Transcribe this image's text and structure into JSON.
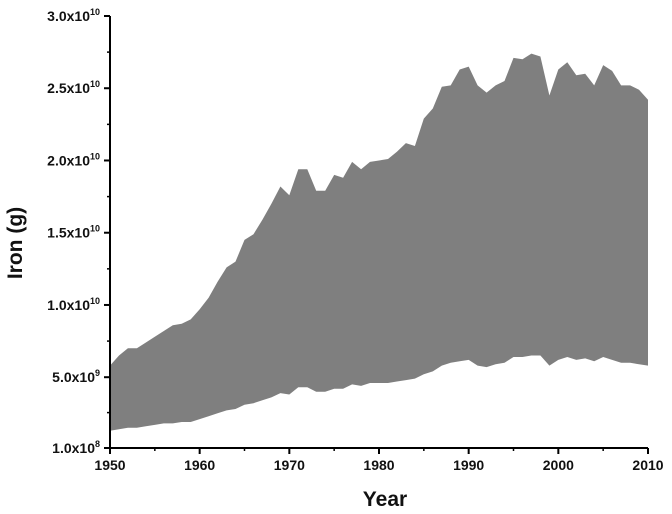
{
  "chart_data": {
    "type": "area",
    "xlabel": "Year",
    "ylabel": "Iron (g)",
    "xlim": [
      1950,
      2010
    ],
    "ylim": [
      100000000,
      30000000000
    ],
    "grid": false,
    "legend": "none",
    "colors": {
      "band": "#7f7f7f",
      "axis": "#000000",
      "background": "#ffffff"
    },
    "x_ticks": [
      {
        "value": 1950,
        "label": "1950"
      },
      {
        "value": 1960,
        "label": "1960"
      },
      {
        "value": 1970,
        "label": "1970"
      },
      {
        "value": 1980,
        "label": "1980"
      },
      {
        "value": 1990,
        "label": "1990"
      },
      {
        "value": 2000,
        "label": "2000"
      },
      {
        "value": 2010,
        "label": "2010"
      }
    ],
    "y_ticks": [
      {
        "value": 100000000,
        "mantissa": "1.0x10",
        "exp": "8"
      },
      {
        "value": 5000000000,
        "mantissa": "5.0x10",
        "exp": "9"
      },
      {
        "value": 10000000000,
        "mantissa": "1.0x10",
        "exp": "10"
      },
      {
        "value": 15000000000,
        "mantissa": "1.5x10",
        "exp": "10"
      },
      {
        "value": 20000000000,
        "mantissa": "2.0x10",
        "exp": "10"
      },
      {
        "value": 25000000000,
        "mantissa": "2.5x10",
        "exp": "10"
      },
      {
        "value": 30000000000,
        "mantissa": "3.0x10",
        "exp": "10"
      }
    ],
    "series": [
      {
        "x": [
          1950,
          1951,
          1952,
          1953,
          1954,
          1955,
          1956,
          1957,
          1958,
          1959,
          1960,
          1961,
          1962,
          1963,
          1964,
          1965,
          1966,
          1967,
          1968,
          1969,
          1970,
          1971,
          1972,
          1973,
          1974,
          1975,
          1976,
          1977,
          1978,
          1979,
          1980,
          1981,
          1982,
          1983,
          1984,
          1985,
          1986,
          1987,
          1988,
          1989,
          1990,
          1991,
          1992,
          1993,
          1994,
          1995,
          1996,
          1997,
          1998,
          1999,
          2000,
          2001,
          2002,
          2003,
          2004,
          2005,
          2006,
          2007,
          2008,
          2009,
          2010
        ],
        "upper": [
          5800000000.0,
          6500000000.0,
          7000000000.0,
          7000000000.0,
          7400000000.0,
          7800000000.0,
          8200000000.0,
          8600000000.0,
          8700000000.0,
          9000000000.0,
          9700000000.0,
          10500000000.0,
          11600000000.0,
          12600000000.0,
          13000000000.0,
          14500000000.0,
          14900000000.0,
          15900000000.0,
          17000000000.0,
          18200000000.0,
          17600000000.0,
          19400000000.0,
          19400000000.0,
          17900000000.0,
          17900000000.0,
          19000000000.0,
          18800000000.0,
          19900000000.0,
          19400000000.0,
          19900000000.0,
          20000000000.0,
          20100000000.0,
          20600000000.0,
          21200000000.0,
          21000000000.0,
          22900000000.0,
          23600000000.0,
          25100000000.0,
          25200000000.0,
          26300000000.0,
          26500000000.0,
          25200000000.0,
          24700000000.0,
          25200000000.0,
          25500000000.0,
          27100000000.0,
          27000000000.0,
          27400000000.0,
          27200000000.0,
          24500000000.0,
          26300000000.0,
          26800000000.0,
          25900000000.0,
          26000000000.0,
          25200000000.0,
          26600000000.0,
          26200000000.0,
          25200000000.0,
          25200000000.0,
          24900000000.0,
          24200000000.0
        ],
        "lower": [
          1300000000.0,
          1400000000.0,
          1500000000.0,
          1500000000.0,
          1600000000.0,
          1700000000.0,
          1800000000.0,
          1800000000.0,
          1900000000.0,
          1900000000.0,
          2100000000.0,
          2300000000.0,
          2500000000.0,
          2700000000.0,
          2800000000.0,
          3100000000.0,
          3200000000.0,
          3400000000.0,
          3600000000.0,
          3900000000.0,
          3800000000.0,
          4300000000.0,
          4300000000.0,
          4000000000.0,
          4000000000.0,
          4200000000.0,
          4200000000.0,
          4500000000.0,
          4400000000.0,
          4600000000.0,
          4600000000.0,
          4600000000.0,
          4700000000.0,
          4800000000.0,
          4900000000.0,
          5200000000.0,
          5400000000.0,
          5800000000.0,
          6000000000.0,
          6100000000.0,
          6200000000.0,
          5800000000.0,
          5700000000.0,
          5900000000.0,
          6000000000.0,
          6400000000.0,
          6400000000.0,
          6500000000.0,
          6500000000.0,
          5800000000.0,
          6200000000.0,
          6400000000.0,
          6200000000.0,
          6300000000.0,
          6100000000.0,
          6400000000.0,
          6200000000.0,
          6000000000.0,
          6000000000.0,
          5900000000.0,
          5800000000.0
        ]
      }
    ]
  }
}
